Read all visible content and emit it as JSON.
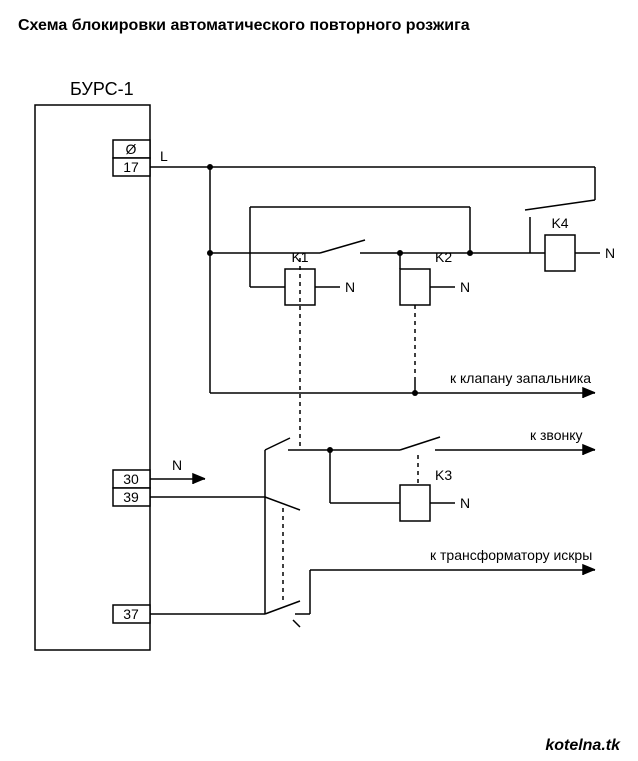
{
  "title": "Схема блокировки автоматического повторного розжига",
  "device": "БУРС-1",
  "terminals": {
    "l_sym": "Ø",
    "t17": "17",
    "t30": "30",
    "t39": "39",
    "t37": "37"
  },
  "wires": {
    "L": "L",
    "N": "N"
  },
  "relays": {
    "K1": "K1",
    "K2": "K2",
    "K3": "K3",
    "K4": "K4"
  },
  "outputs": {
    "valve": "к клапану запальника",
    "bell": "к звонку",
    "spark": "к трансформатору искры"
  },
  "footer": "kotelna.tk",
  "style": {
    "stroke": "#000000",
    "stroke_width": 1.5,
    "dash": "4,4",
    "bg": "#ffffff",
    "text": "#000000",
    "dot_r": 3,
    "arrow_len": 12,
    "arrow_w": 5
  }
}
